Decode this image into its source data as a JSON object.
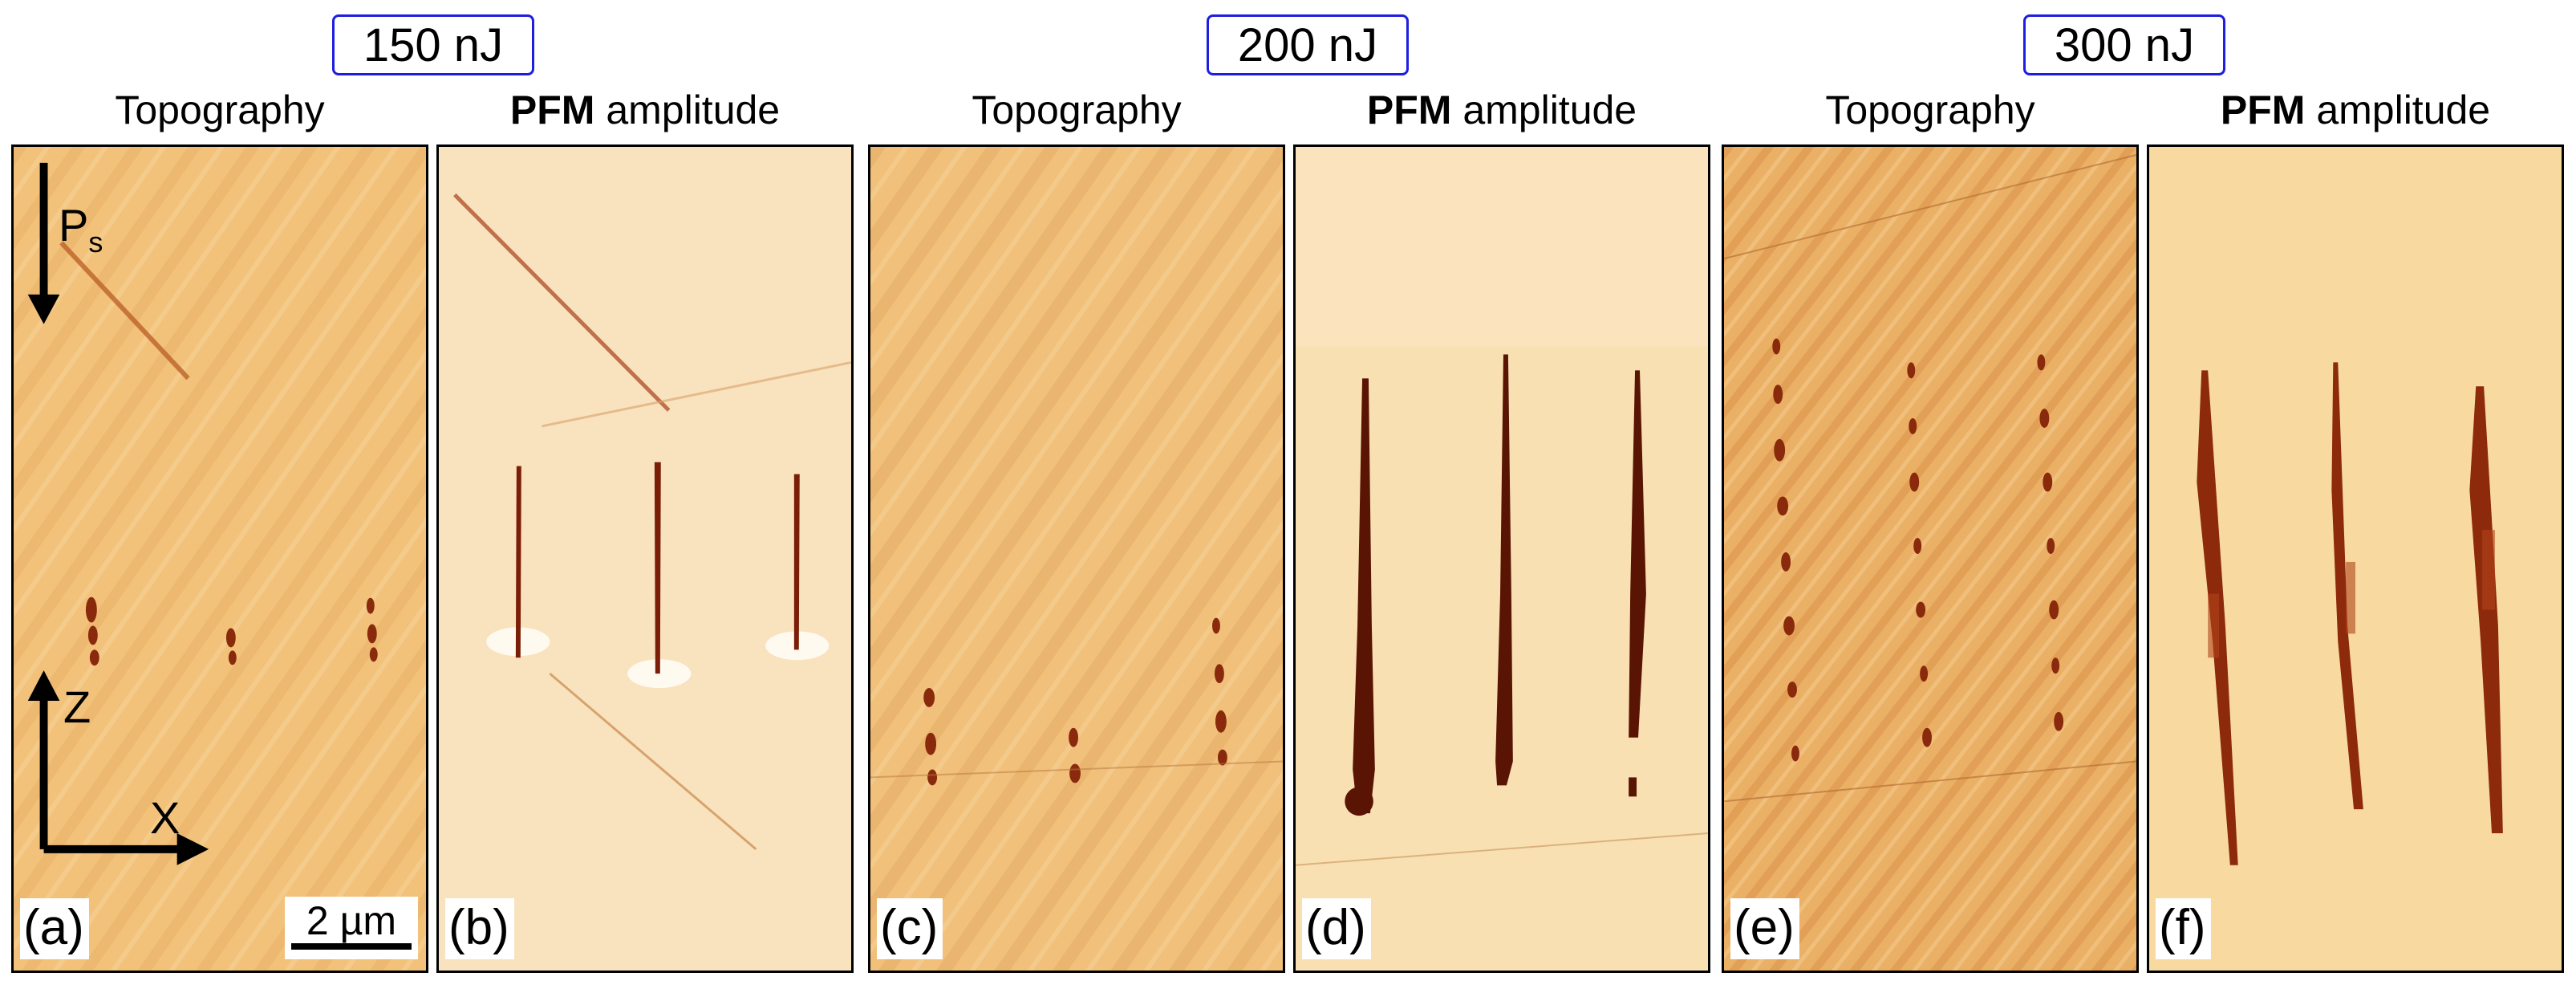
{
  "energy_labels": [
    "150 nJ",
    "200 nJ",
    "300 nJ"
  ],
  "column_titles": {
    "topography": "Topography",
    "pfm_bold": "PFM",
    "pfm_rest": " amplitude"
  },
  "panel_labels": [
    "(a)",
    "(b)",
    "(c)",
    "(d)",
    "(e)",
    "(f)"
  ],
  "scale_bar": "2 µm",
  "axes": {
    "polarization_main": "P",
    "polarization_sub": "s",
    "z": "Z",
    "x": "X"
  },
  "colors": {
    "topography_base": "#f2c27a",
    "topography_stripe": "#e3a55a",
    "pfm_base": "#fbe9cb",
    "pfm_light": "#fdf4e4",
    "feature_dark": "#7a1e08",
    "feature_mid": "#a9401a",
    "box_border": "#1e1ee0"
  }
}
